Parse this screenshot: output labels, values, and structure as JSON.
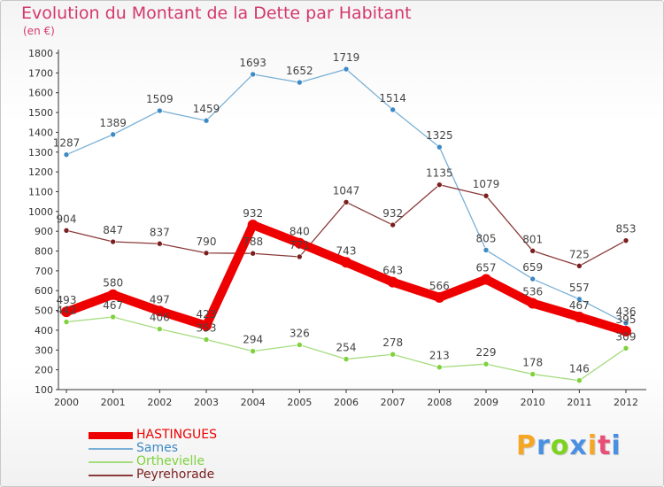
{
  "header": {
    "title": "Evolution du Montant de la Dette par Habitant",
    "subtitle": "(en €)"
  },
  "logo": {
    "text": "Proxiti",
    "colors": [
      "#f5a623",
      "#4a90e2",
      "#7ed321",
      "#4a90e2",
      "#f5a623",
      "#e94e77",
      "#4a90e2"
    ]
  },
  "chart_data": {
    "type": "line",
    "x": [
      "2000",
      "2001",
      "2002",
      "2003",
      "2004",
      "2005",
      "2006",
      "2007",
      "2008",
      "2009",
      "2010",
      "2011",
      "2012"
    ],
    "ylim": [
      100,
      1800
    ],
    "yticks": [
      100,
      200,
      300,
      400,
      500,
      600,
      700,
      800,
      900,
      1000,
      1100,
      1200,
      1300,
      1400,
      1500,
      1600,
      1700,
      1800
    ],
    "grid": false,
    "legend_position": "bottom-left",
    "series": [
      {
        "name": "HASTINGUES",
        "color": "#ee0000",
        "point_color": "#ee0000",
        "values": [
          493,
          580,
          497,
          423,
          932,
          840,
          743,
          643,
          566,
          657,
          536,
          467,
          395
        ]
      },
      {
        "name": "Sames",
        "color": "#7ab0d6",
        "point_color": "#3e8ac4",
        "values": [
          1287,
          1389,
          1509,
          1459,
          1693,
          1652,
          1719,
          1514,
          1325,
          805,
          659,
          557,
          436
        ]
      },
      {
        "name": "Orthevielle",
        "color": "#a6dc80",
        "point_color": "#7ed23c",
        "values": [
          442,
          467,
          406,
          353,
          294,
          326,
          254,
          278,
          213,
          229,
          178,
          146,
          309
        ]
      },
      {
        "name": "Peyrehorade",
        "color": "#8b3a3a",
        "point_color": "#7a1f1f",
        "values": [
          904,
          847,
          837,
          790,
          788,
          771,
          1047,
          932,
          1135,
          1079,
          801,
          725,
          853
        ]
      }
    ]
  }
}
